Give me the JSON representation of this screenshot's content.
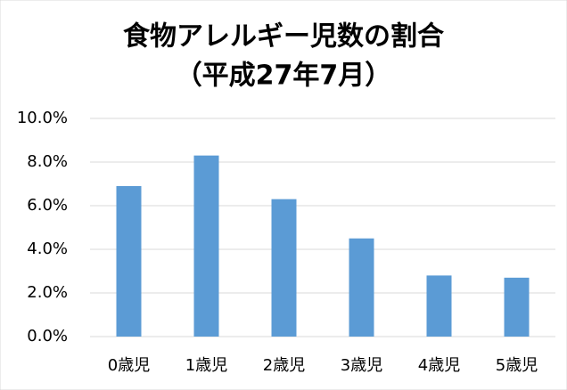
{
  "chart_data": {
    "type": "bar",
    "title": "食物アレルギー児数の割合",
    "subtitle": "（平成27年7月）",
    "categories": [
      "0歳児",
      "1歳児",
      "2歳児",
      "3歳児",
      "4歳児",
      "5歳児"
    ],
    "values": [
      6.9,
      8.3,
      6.3,
      4.5,
      2.8,
      2.7
    ],
    "color": "#5b9bd5",
    "ylim": [
      0,
      10
    ],
    "yticks": [
      {
        "value": 0,
        "label": "0.0%"
      },
      {
        "value": 2,
        "label": "2.0%"
      },
      {
        "value": 4,
        "label": "4.0%"
      },
      {
        "value": 6,
        "label": "6.0%"
      },
      {
        "value": 8,
        "label": "8.0%"
      },
      {
        "value": 10,
        "label": "10.0%"
      }
    ],
    "grid": true
  }
}
